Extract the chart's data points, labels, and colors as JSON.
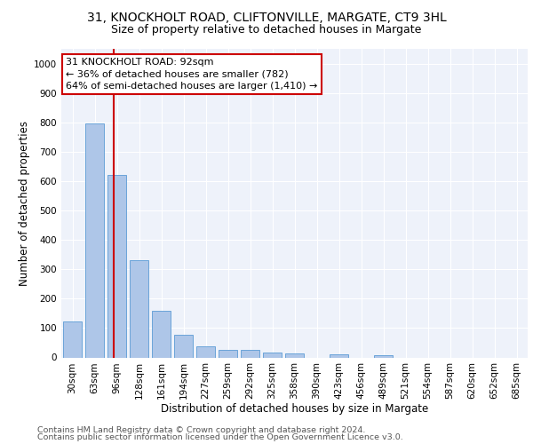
{
  "title1": "31, KNOCKHOLT ROAD, CLIFTONVILLE, MARGATE, CT9 3HL",
  "title2": "Size of property relative to detached houses in Margate",
  "xlabel": "Distribution of detached houses by size in Margate",
  "ylabel": "Number of detached properties",
  "categories": [
    "30sqm",
    "63sqm",
    "96sqm",
    "128sqm",
    "161sqm",
    "194sqm",
    "227sqm",
    "259sqm",
    "292sqm",
    "325sqm",
    "358sqm",
    "390sqm",
    "423sqm",
    "456sqm",
    "489sqm",
    "521sqm",
    "554sqm",
    "587sqm",
    "620sqm",
    "652sqm",
    "685sqm"
  ],
  "values": [
    122,
    795,
    620,
    330,
    158,
    78,
    37,
    27,
    25,
    18,
    14,
    0,
    10,
    0,
    8,
    0,
    0,
    0,
    0,
    0,
    0
  ],
  "bar_color": "#aec6e8",
  "bar_edge_color": "#5b9bd5",
  "vline_color": "#cc0000",
  "annotation_text": "31 KNOCKHOLT ROAD: 92sqm\n← 36% of detached houses are smaller (782)\n64% of semi-detached houses are larger (1,410) →",
  "annotation_box_color": "#ffffff",
  "annotation_box_edge_color": "#cc0000",
  "footer1": "Contains HM Land Registry data © Crown copyright and database right 2024.",
  "footer2": "Contains public sector information licensed under the Open Government Licence v3.0.",
  "ylim": [
    0,
    1050
  ],
  "yticks": [
    0,
    100,
    200,
    300,
    400,
    500,
    600,
    700,
    800,
    900,
    1000
  ],
  "bg_color": "#eef2fa",
  "grid_color": "#ffffff",
  "title1_fontsize": 10,
  "title2_fontsize": 9,
  "axis_label_fontsize": 8.5,
  "tick_fontsize": 7.5,
  "annotation_fontsize": 8,
  "footer_fontsize": 6.8
}
